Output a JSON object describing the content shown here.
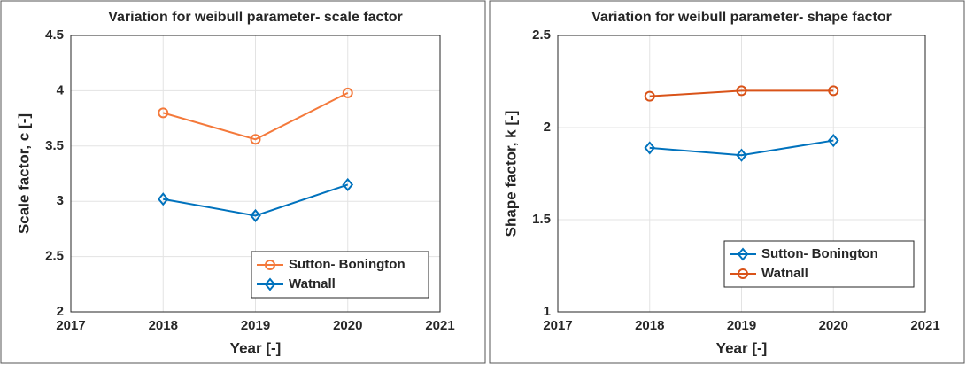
{
  "chart_data": [
    {
      "type": "line",
      "title": "Variation for weibull parameter- scale factor",
      "xlabel": "Year [-]",
      "ylabel": "Scale  factor, c [-]",
      "x": [
        2018,
        2019,
        2020
      ],
      "series": [
        {
          "name": "Sutton- Bonington",
          "color": "#f4793b",
          "marker": "circle",
          "values": [
            3.8,
            3.56,
            3.98
          ]
        },
        {
          "name": "Watnall",
          "color": "#0072bd",
          "marker": "diamond",
          "values": [
            3.02,
            2.87,
            3.15
          ]
        }
      ],
      "xlim": [
        2017,
        2021
      ],
      "xticks": [
        2017,
        2018,
        2019,
        2020,
        2021
      ],
      "ylim": [
        2,
        4.5
      ],
      "yticks": [
        2,
        2.5,
        3,
        3.5,
        4,
        4.5
      ],
      "grid": true,
      "legend": "lower right"
    },
    {
      "type": "line",
      "title": "Variation for weibull parameter- shape factor",
      "xlabel": "Year [-]",
      "ylabel": "Shape factor, k [-]",
      "x": [
        2018,
        2019,
        2020
      ],
      "series": [
        {
          "name": "Sutton- Bonington",
          "color": "#0072bd",
          "marker": "diamond",
          "values": [
            1.89,
            1.85,
            1.93
          ]
        },
        {
          "name": "Watnall",
          "color": "#d95319",
          "marker": "circle",
          "values": [
            2.17,
            2.2,
            2.2
          ]
        }
      ],
      "xlim": [
        2017,
        2021
      ],
      "xticks": [
        2017,
        2018,
        2019,
        2020,
        2021
      ],
      "ylim": [
        1,
        2.5
      ],
      "yticks": [
        1,
        1.5,
        2,
        2.5
      ],
      "grid": true,
      "legend": "lower right"
    }
  ]
}
